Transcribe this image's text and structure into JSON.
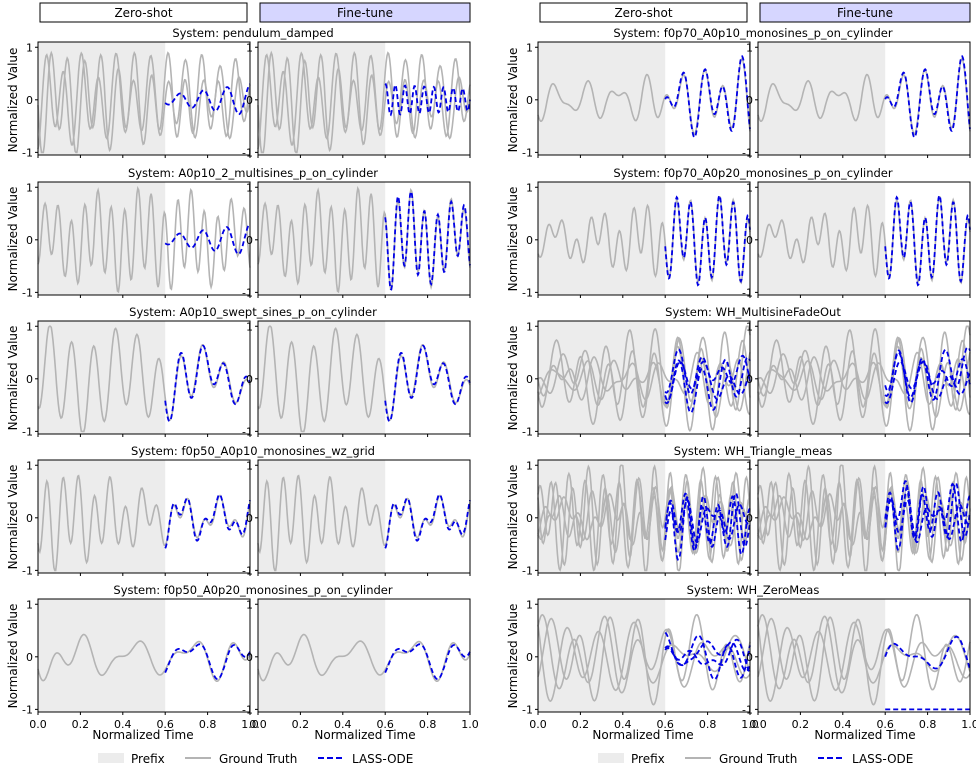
{
  "headers": {
    "zero_shot": "Zero-shot",
    "fine_tune": "Fine-tune"
  },
  "colors": {
    "prefix_bg": "#ececec",
    "ground_truth": "#b4b4b4",
    "prediction": "#0000e6",
    "finetune_header_bg": "#d6d6ff"
  },
  "legend": {
    "prefix": "Prefix",
    "ground_truth": "Ground Truth",
    "prediction": "LASS-ODE"
  },
  "chart_data": {
    "type": "line",
    "xlabel": "Normalized Time",
    "ylabel": "Normalized Value",
    "xlim": [
      0,
      1
    ],
    "ylim": [
      -1.05,
      1.1
    ],
    "xticks": [
      "0.0",
      "0.2",
      "0.4",
      "0.6",
      "0.8",
      "1.0"
    ],
    "yticks": [
      "1",
      "0",
      "-1"
    ],
    "prefix_range": [
      0,
      0.6
    ],
    "systems": [
      {
        "title": "System: pendulum_damped",
        "zs_pred": "off",
        "ft_pred": "osc",
        "gt_lines": 2
      },
      {
        "title": "System: A0p10_2_multisines_p_on_cylinder",
        "zs_pred": "off",
        "ft_pred": "fit",
        "gt_lines": 1
      },
      {
        "title": "System: A0p10_swept_sines_p_on_cylinder",
        "zs_pred": "fit",
        "ft_pred": "fit",
        "gt_lines": 1
      },
      {
        "title": "System: f0p50_A0p10_monosines_wz_grid",
        "zs_pred": "fit",
        "ft_pred": "fit",
        "gt_lines": 1
      },
      {
        "title": "System: f0p50_A0p20_monosines_p_on_cylinder",
        "zs_pred": "fit",
        "ft_pred": "fit",
        "gt_lines": 1
      },
      {
        "title": "System: f0p70_A0p10_monosines_p_on_cylinder",
        "zs_pred": "fit",
        "ft_pred": "fit",
        "gt_lines": 1
      },
      {
        "title": "System: f0p70_A0p20_monosines_p_on_cylinder",
        "zs_pred": "fit",
        "ft_pred": "fit",
        "gt_lines": 1
      },
      {
        "title": "System: WH_MultisineFadeOut",
        "zs_pred": "multi",
        "ft_pred": "multi",
        "gt_lines": 4
      },
      {
        "title": "System: WH_Triangle_meas",
        "zs_pred": "multi",
        "ft_pred": "multi",
        "gt_lines": 4
      },
      {
        "title": "System: WH_ZeroMeas",
        "zs_pred": "multi",
        "ft_pred": "fitflat",
        "gt_lines": 3
      }
    ]
  }
}
